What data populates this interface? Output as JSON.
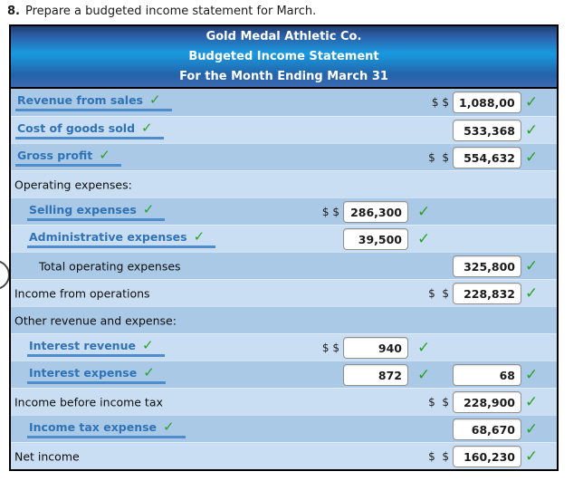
{
  "instruction": {
    "number": "8.",
    "text": "Prepare a budgeted income statement for March."
  },
  "statement": {
    "company": "Gold Medal Athletic Co.",
    "title": "Budgeted Income Statement",
    "period": "For the Month Ending March 31"
  },
  "icons": {
    "check": "✓"
  },
  "colors": {
    "accent_link": "#2f73b6",
    "underline": "#4e8dc9",
    "check_green": "#2aa22a",
    "row_dark": "#a9c9e6",
    "row_light": "#cadef3",
    "header_top": "#2d5ba3",
    "header_bright": "#189ae0",
    "header_bottom": "#3c69b2",
    "border": "#000000"
  },
  "rows": [
    {
      "label": "Revenue from sales",
      "type": "link",
      "indent": 0,
      "right": {
        "dollars": "$ $",
        "value": "1,088,000",
        "check": true
      }
    },
    {
      "label": "Cost of goods sold",
      "type": "link",
      "indent": 0,
      "right": {
        "value": "533,368",
        "check": true
      }
    },
    {
      "label": "Gross profit",
      "type": "link",
      "indent": 0,
      "right": {
        "dollars": "$  $",
        "value": "554,632",
        "check": true
      }
    },
    {
      "label": "Operating expenses:",
      "type": "static",
      "indent": 0
    },
    {
      "label": "Selling expenses",
      "type": "link",
      "indent": 1,
      "mid": {
        "dollars": "$ $",
        "value": "286,300",
        "check": true
      }
    },
    {
      "label": "Administrative expenses",
      "type": "link",
      "indent": 1,
      "mid": {
        "value": "39,500",
        "check": true
      }
    },
    {
      "label": "Total operating expenses",
      "type": "static",
      "indent": 2,
      "right": {
        "value": "325,800",
        "check": true
      }
    },
    {
      "label": "Income from operations",
      "type": "static",
      "indent": 0,
      "right": {
        "dollars": "$  $",
        "value": "228,832",
        "check": true
      }
    },
    {
      "label": "Other revenue and expense:",
      "type": "static",
      "indent": 0
    },
    {
      "label": "Interest revenue",
      "type": "link",
      "indent": 1,
      "mid": {
        "dollars": "$ $",
        "value": "940",
        "check": true
      }
    },
    {
      "label": "Interest expense",
      "type": "link",
      "indent": 1,
      "mid": {
        "value": "872",
        "check": true
      },
      "right": {
        "value": "68",
        "check": true
      }
    },
    {
      "label": "Income before income tax",
      "type": "static",
      "indent": 0,
      "right": {
        "dollars": "$  $",
        "value": "228,900",
        "check": true
      }
    },
    {
      "label": "Income tax expense",
      "type": "link",
      "indent": 1,
      "right": {
        "value": "68,670",
        "check": true
      }
    },
    {
      "label": "Net income",
      "type": "static",
      "indent": 0,
      "right": {
        "dollars": "$  $",
        "value": "160,230",
        "check": true
      }
    }
  ]
}
